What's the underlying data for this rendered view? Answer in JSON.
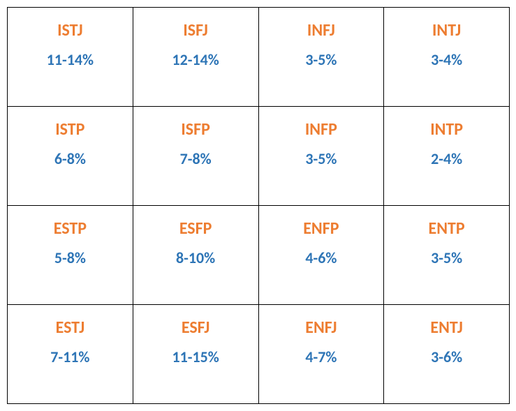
{
  "type": "table",
  "rows": 4,
  "cols": 4,
  "border_color": "#000000",
  "background_color": "#ffffff",
  "code_color": "#ed7d31",
  "pct_color": "#2e75b6",
  "code_fontsize": 24,
  "pct_fontsize": 22,
  "font_weight": 700,
  "cells": [
    [
      {
        "code": "ISTJ",
        "pct": "11-14%"
      },
      {
        "code": "ISFJ",
        "pct": "12-14%"
      },
      {
        "code": "INFJ",
        "pct": "3-5%"
      },
      {
        "code": "INTJ",
        "pct": "3-4%"
      }
    ],
    [
      {
        "code": "ISTP",
        "pct": "6-8%"
      },
      {
        "code": "ISFP",
        "pct": "7-8%"
      },
      {
        "code": "INFP",
        "pct": "3-5%"
      },
      {
        "code": "INTP",
        "pct": "2-4%"
      }
    ],
    [
      {
        "code": "ESTP",
        "pct": "5-8%"
      },
      {
        "code": "ESFP",
        "pct": "8-10%"
      },
      {
        "code": "ENFP",
        "pct": "4-6%"
      },
      {
        "code": "ENTP",
        "pct": "3-5%"
      }
    ],
    [
      {
        "code": "ESTJ",
        "pct": "7-11%"
      },
      {
        "code": "ESFJ",
        "pct": "11-15%"
      },
      {
        "code": "ENFJ",
        "pct": "4-7%"
      },
      {
        "code": "ENTJ",
        "pct": "3-6%"
      }
    ]
  ]
}
